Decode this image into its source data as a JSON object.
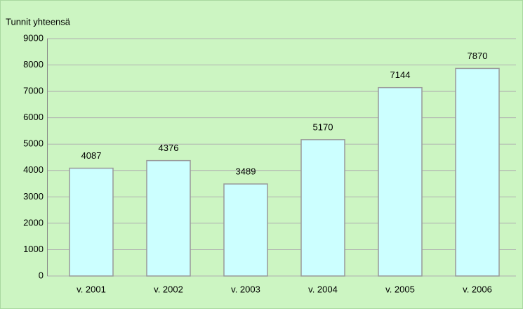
{
  "chart_data": {
    "type": "bar",
    "y_label": "Tunnit yhteensä",
    "categories": [
      "v. 2001",
      "v. 2002",
      "v. 2003",
      "v. 2004",
      "v. 2005",
      "v. 2006"
    ],
    "values": [
      4087,
      4376,
      3489,
      5170,
      7144,
      7870
    ],
    "color": "#ccffff",
    "ylim": [
      0,
      9000
    ],
    "yticks": [
      0,
      1000,
      2000,
      3000,
      4000,
      5000,
      6000,
      7000,
      8000,
      9000
    ],
    "grid": true
  }
}
